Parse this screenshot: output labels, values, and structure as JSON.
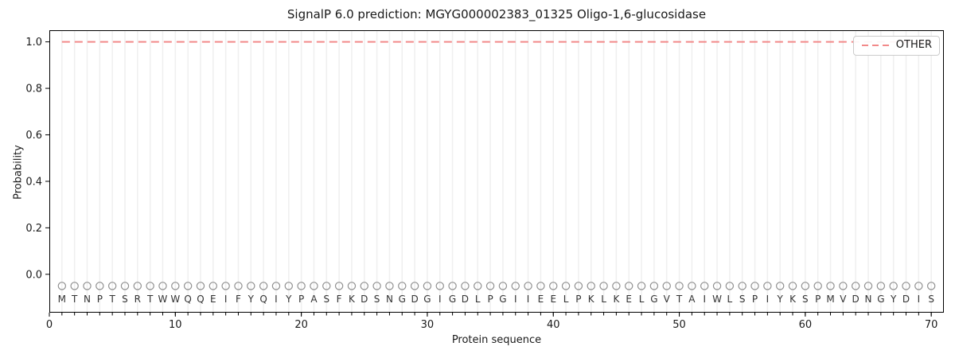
{
  "chart_data": {
    "type": "line",
    "title": "SignalP 6.0 prediction: MGYG000002383_01325 Oligo-1,6-glucosidase",
    "xlabel": "Protein sequence",
    "ylabel": "Probability",
    "xlim": [
      0,
      71
    ],
    "ylim": [
      -0.165,
      1.05
    ],
    "x_ticks": [
      0,
      10,
      20,
      30,
      40,
      50,
      60,
      70
    ],
    "y_ticks": [
      0.0,
      0.2,
      0.4,
      0.6,
      0.8,
      1.0
    ],
    "grid": "vertical-line-per-residue",
    "series": [
      {
        "name": "OTHER",
        "style": "dashed",
        "color": "#f28989",
        "x_range": [
          1,
          70
        ],
        "y_constant": 1.0
      }
    ],
    "legend": {
      "position": "upper-right",
      "entries": [
        {
          "label": "OTHER",
          "style": "dashed",
          "color": "#f28989"
        }
      ]
    },
    "sequence": [
      "M",
      "T",
      "N",
      "P",
      "T",
      "S",
      "R",
      "T",
      "W",
      "W",
      "Q",
      "Q",
      "E",
      "I",
      "F",
      "Y",
      "Q",
      "I",
      "Y",
      "P",
      "A",
      "S",
      "F",
      "K",
      "D",
      "S",
      "N",
      "G",
      "D",
      "G",
      "I",
      "G",
      "D",
      "L",
      "P",
      "G",
      "I",
      "I",
      "E",
      "E",
      "L",
      "P",
      "K",
      "L",
      "K",
      "E",
      "L",
      "G",
      "V",
      "T",
      "A",
      "I",
      "W",
      "L",
      "S",
      "P",
      "I",
      "Y",
      "K",
      "S",
      "P",
      "M",
      "V",
      "D",
      "N",
      "G",
      "Y",
      "D",
      "I",
      "S"
    ],
    "residue_markers": {
      "shape": "circle",
      "y": -0.05,
      "color": "#909090"
    },
    "residue_letters": {
      "y": -0.105,
      "color": "#333333"
    },
    "colors": {
      "grid": "#efefef",
      "spine": "#000000",
      "text": "#1a1a1a",
      "background": "#ffffff"
    }
  }
}
